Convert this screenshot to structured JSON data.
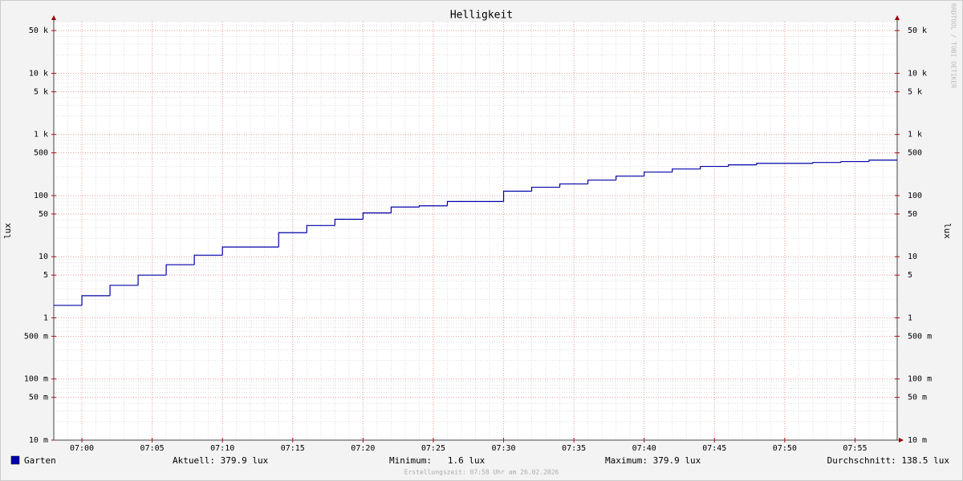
{
  "chart_data": {
    "type": "step-line",
    "title": "Helligkeit",
    "y_label": "lux",
    "log_scale": true,
    "grid": true,
    "xlim": [
      "06:58",
      "07:58"
    ],
    "xticks": [
      "07:00",
      "07:05",
      "07:10",
      "07:15",
      "07:20",
      "07:25",
      "07:30",
      "07:35",
      "07:40",
      "07:45",
      "07:50",
      "07:55"
    ],
    "ylim": [
      0.01,
      70000
    ],
    "yticks": [
      {
        "value": 50000,
        "label": "50 k"
      },
      {
        "value": 10000,
        "label": "10 k"
      },
      {
        "value": 5000,
        "label": "5 k"
      },
      {
        "value": 1000,
        "label": "1 k"
      },
      500,
      100,
      50,
      10,
      5,
      1,
      {
        "value": 0.5,
        "label": "500 m"
      },
      {
        "value": 0.1,
        "label": "100 m"
      },
      {
        "value": 0.05,
        "label": "50 m"
      },
      {
        "value": 0.01,
        "label": "10 m"
      }
    ],
    "x": [
      "06:58",
      "07:00",
      "07:02",
      "07:04",
      "07:06",
      "07:08",
      "07:10",
      "07:14",
      "07:16",
      "07:18",
      "07:20",
      "07:22",
      "07:24",
      "07:26",
      "07:30",
      "07:32",
      "07:34",
      "07:36",
      "07:38",
      "07:40",
      "07:42",
      "07:44",
      "07:46",
      "07:48",
      "07:52",
      "07:54",
      "07:56"
    ],
    "series": [
      {
        "name": "Garten",
        "color": "#0000aa",
        "values": [
          1.6,
          2.3,
          3.4,
          5.0,
          7.4,
          10.6,
          14.4,
          24.7,
          32.4,
          41,
          52,
          65,
          68,
          80,
          118,
          137,
          155,
          179,
          208,
          242,
          272,
          300,
          318,
          337,
          348,
          360,
          379.9
        ]
      }
    ],
    "stats": [
      "Aktuell: 379.9 lux",
      "Minimum:   1.6 lux",
      "Maximum: 379.9 lux",
      "Durchschnitt: 138.5 lux"
    ],
    "footer": "Erstellungszeit: 07:58 Uhr am 26.02.2026",
    "watermark": "RRDTOOL / TOBI OETIKER"
  }
}
